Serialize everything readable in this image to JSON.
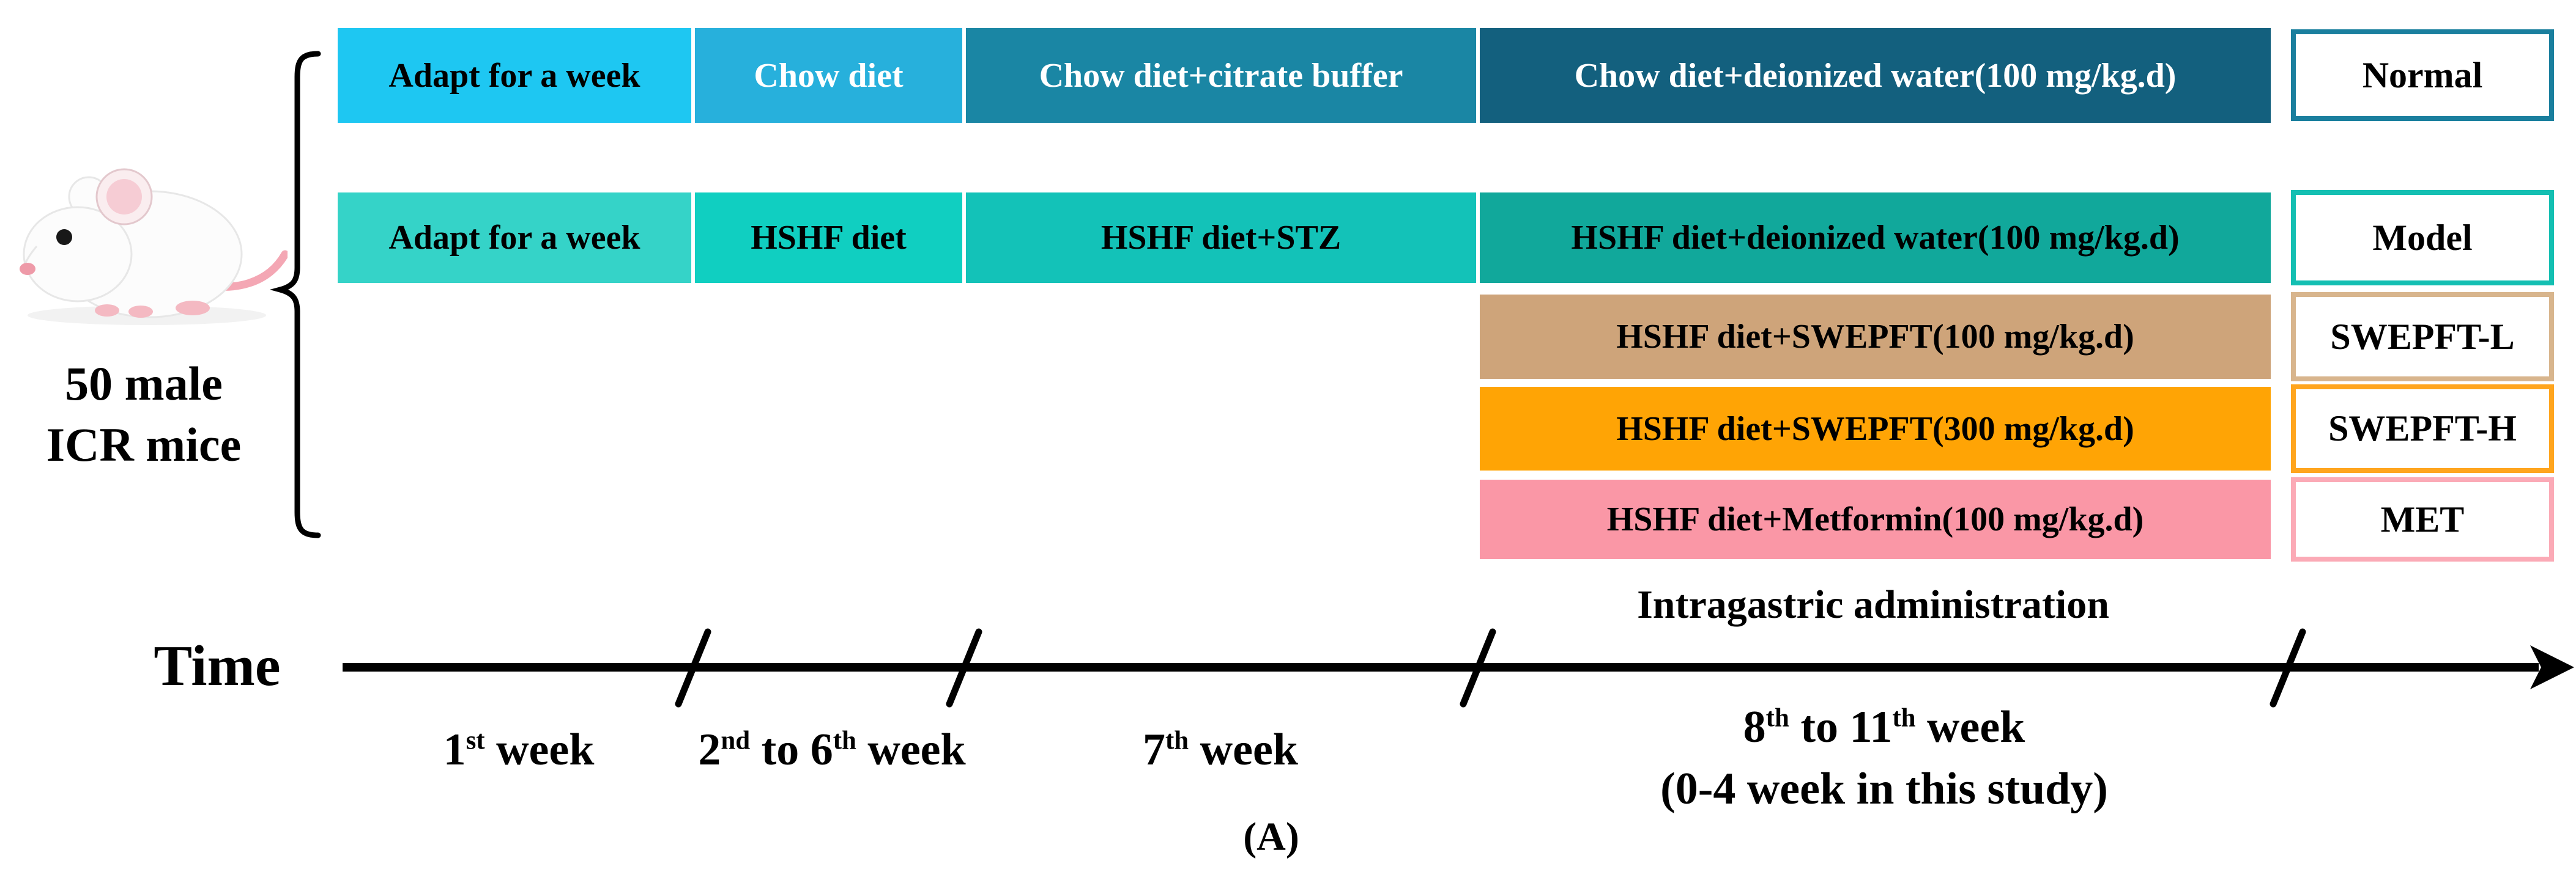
{
  "figure_caption": "(A)",
  "subject": {
    "count_line": "50 male",
    "strain_line": "ICR mice"
  },
  "icons": {
    "mouse": "white-lab-mouse"
  },
  "groups": [
    {
      "name": "Normal",
      "segments": [
        "Adapt for a week",
        "Chow diet",
        "Chow diet+citrate buffer",
        "Chow diet+deionized water(100 mg/kg.d)"
      ]
    },
    {
      "name": "Model",
      "segments": [
        "Adapt for a week",
        "HSHF diet",
        "HSHF diet+STZ",
        "HSHF diet+deionized water(100 mg/kg.d)"
      ]
    },
    {
      "name": "SWEPFT-L",
      "segments": [
        "HSHF diet+SWEPFT(100 mg/kg.d)"
      ]
    },
    {
      "name": "SWEPFT-H",
      "segments": [
        "HSHF diet+SWEPFT(300 mg/kg.d)"
      ]
    },
    {
      "name": "MET",
      "segments": [
        "HSHF diet+Metformin(100 mg/kg.d)"
      ]
    }
  ],
  "timeline": {
    "axis_label": "Time",
    "admin_label": "Intragastric administration",
    "phases": [
      {
        "label": "1^st^ week"
      },
      {
        "label": "2^nd^ to 6^th^ week"
      },
      {
        "label": "7^th^ week"
      },
      {
        "label": "8^th^ to 11^th^ week",
        "sublabel": "(0-4 week in this study)"
      }
    ]
  },
  "colors": {
    "normal_segments": [
      "#1EC7F2",
      "#27B0DC",
      "#1A86A4",
      "#13607E"
    ],
    "model_segments": [
      "#35D3C8",
      "#10CFC1",
      "#13C2B8",
      "#11A89B"
    ],
    "swepft_l_bar": "#CEA47A",
    "swepft_h_bar": "#FFA405",
    "met_bar": "#FA97A6",
    "normal_box_border": "#1A7F9E",
    "model_box_border": "#14BFB2",
    "swepft_l_box_border": "#D8B58D",
    "swepft_h_box_border": "#FFA51E",
    "met_box_border": "#FBAAB6",
    "text_dark": "#000000",
    "text_light": "#FFFFFF"
  }
}
